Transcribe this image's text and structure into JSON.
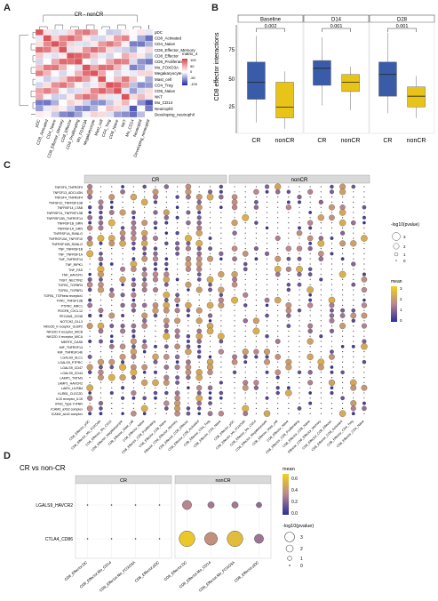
{
  "panels": {
    "a": {
      "letter": "A",
      "title": "CR - nonCR",
      "row_labels": [
        "pDC",
        "CD8_Activated",
        "CD4_Naive",
        "CD8_Effector_Memory",
        "CD8_Effector",
        "CD8_Proliferating",
        "Mo_FOXO3A",
        "Megakaryocyte",
        "Mast_cell",
        "CD4_Treg",
        "CD8_Naive",
        "NKT",
        "Mo_CD14",
        "Neutrophil",
        "Developing_neutrophil"
      ],
      "col_labels": [
        "pDC",
        "CD8_Activated",
        "CD4_Naive",
        "CD8_Effector_Memory",
        "CD8_Effector",
        "CD8_Proliferating",
        "Mo_FOXO3A",
        "Megakaryocyte",
        "Mast_cell",
        "CD4_Treg",
        "CD8_Naive",
        "NKT",
        "Mo_CD14",
        "Neutrophil",
        "Developing_neutrophil"
      ],
      "legend_title": "matrix_4",
      "legend_ticks": [
        "100",
        "50",
        "0",
        "-50",
        "-100"
      ]
    },
    "b": {
      "letter": "B",
      "ylabel": "CD8 effector interactions",
      "yticks": [
        "75",
        "50",
        "25"
      ],
      "facets": [
        {
          "name": "Baseline",
          "pvalue": "0.002",
          "groups": [
            "CR",
            "nonCR"
          ]
        },
        {
          "name": "D14",
          "pvalue": "0.001",
          "groups": [
            "CR",
            "nonCR"
          ]
        },
        {
          "name": "D28",
          "pvalue": "0.001",
          "groups": [
            "CR",
            "nonCR"
          ]
        }
      ]
    },
    "c": {
      "letter": "C",
      "facets": [
        "CR",
        "nonCR"
      ],
      "row_labels": [
        "TNFSF9_TNFRSF9",
        "TNFSF13_ADCLIGN",
        "TNFSF4_TNFRSF4",
        "TNFSF10_TNFRSF10B",
        "TNFRSF14_LTAB",
        "TNFRSF14_TNFRSF13B",
        "TNFRSF13B_TNFRSF14",
        "TNFRSF1B_GRN",
        "TNFRSF1A_GRN",
        "TNFRSF1A_RANLG",
        "TNFRSF10A_TNFSF10",
        "TNFRSF10B_RANLG",
        "TNF_TNFRSF1B",
        "TNF_TNFRSF1A",
        "TNF_TNFRSF14",
        "TNF_RIPK1",
        "TNF_FAS",
        "TNF_HAVCR1",
        "TIGIT_NECTIN2",
        "TGFB1_TGFBR3",
        "TGFB1_TGFBR1",
        "TGFB1_TGFbeta receptor1",
        "TFRC_TNFSF13B",
        "PTPRC_MRC1",
        "PDGFB_CXCL12",
        "PECAM1_CD38",
        "NOTCH2_DLL3",
        "NKG2D_II receptor_ULBP2",
        "NKG2D II receptor_MICB",
        "NKG2D II receptor_MICA",
        "MERTK_GAS6",
        "MIF_TNFRSF14",
        "MIF_TNFRSF14b",
        "LGALS9_SLC1",
        "LGALS9_PTPRC",
        "LGALS9_CD47",
        "LGALS9_CD44",
        "LAMP1_TNTM3",
        "LAMP1_HAVCR2",
        "LAIR1_LILRB4",
        "KLRB1_CLEC2D",
        "IL15 receptor_IL15",
        "IFNG_Type II IFNR",
        "ICAM3_aXb2 complex",
        "ICAM2_aLb2 complex"
      ],
      "col_labels": [
        "CD8_Effector_pDC",
        "CD8_Effector_Mo_FOXO3A",
        "CD8_Effector_Mo_CD14",
        "CD8_Effector_Megakaryocyte",
        "CD8_Effector_Mast_cell",
        "CD8_Effector_Naive",
        "CD8_Effector_CD8_Proliferating",
        "CD8_Effector_CD8_Naive",
        "CD8_Effector_CD8_Effector_Memory",
        "CD8_Effector_CD8_Effector",
        "CD8_Effector_CD8_Activated",
        "CD8_Effector_CD4_Treg",
        "CD8_Effector_CD4_Naive"
      ],
      "size_legend_title": "-log10(pvalue)",
      "size_legend_ticks": [
        "3",
        "2",
        "1",
        "0"
      ],
      "color_legend_title": "mean",
      "color_legend_ticks": [
        "3",
        "2",
        "1",
        "0"
      ]
    },
    "d": {
      "letter": "D",
      "title": "CR vs non-CR",
      "facets": [
        "CR",
        "nonCR"
      ],
      "rows": [
        "LGALS9_HAVCR2",
        "CTLA4_CD86"
      ],
      "cols": [
        "CD8_Effector.DC",
        "CD8_Effector.Mo_CD14",
        "CD8_Effector.Mo_FOXO3A",
        "CD8_Effector.pDC"
      ],
      "color_legend_title": "mean",
      "color_legend_ticks": [
        "0.6",
        "0.4",
        "0.2",
        "0.0"
      ],
      "size_legend_title": "-log10(pvalue)",
      "size_legend_ticks": [
        "3",
        "2",
        "1",
        "0"
      ],
      "nonCR_points": [
        {
          "row": 0,
          "col": 0,
          "size": 1.6,
          "mean": 0.35
        },
        {
          "row": 0,
          "col": 1,
          "size": 1.0,
          "mean": 0.3
        },
        {
          "row": 0,
          "col": 2,
          "size": 1.0,
          "mean": 0.3
        },
        {
          "row": 0,
          "col": 3,
          "size": 0.8,
          "mean": 0.25
        },
        {
          "row": 1,
          "col": 0,
          "size": 3.0,
          "mean": 0.65
        },
        {
          "row": 1,
          "col": 1,
          "size": 2.4,
          "mean": 0.4
        },
        {
          "row": 1,
          "col": 2,
          "size": 3.0,
          "mean": 0.6
        },
        {
          "row": 1,
          "col": 3,
          "size": 1.6,
          "mean": 0.28
        }
      ]
    }
  },
  "chart_data": [
    {
      "type": "heatmap",
      "title": "CR - nonCR",
      "legend_title": "matrix_4",
      "categories": [
        "pDC",
        "CD8_Activated",
        "CD4_Naive",
        "CD8_Effector_Memory",
        "CD8_Effector",
        "CD8_Proliferating",
        "Mo_FOXO3A",
        "Megakaryocyte",
        "Mast_cell",
        "CD4_Treg",
        "CD8_Naive",
        "NKT",
        "Mo_CD14",
        "Neutrophil",
        "Developing_neutrophil"
      ],
      "colorbar_range": [
        -100,
        100
      ]
    },
    {
      "type": "box",
      "ylabel": "CD8 effector interactions",
      "ylim": [
        15,
        85
      ],
      "facets": [
        {
          "name": "Baseline",
          "pvalue": "0.002",
          "boxes": [
            {
              "group": "CR",
              "min": 22,
              "q1": 37,
              "median": 48,
              "q3": 61,
              "max": 78,
              "color": "#3a5ba8"
            },
            {
              "group": "nonCR",
              "min": 18,
              "q1": 25,
              "median": 32,
              "q3": 48,
              "max": 55,
              "color": "#e8c318"
            }
          ]
        },
        {
          "name": "D14",
          "pvalue": "0.001",
          "boxes": [
            {
              "group": "CR",
              "min": 33,
              "q1": 46,
              "median": 57,
              "q3": 62,
              "max": 77,
              "color": "#3a5ba8"
            },
            {
              "group": "nonCR",
              "min": 30,
              "q1": 42,
              "median": 48,
              "q3": 53,
              "max": 58,
              "color": "#e8c318"
            }
          ]
        },
        {
          "name": "D28",
          "pvalue": "0.001",
          "boxes": [
            {
              "group": "CR",
              "min": 28,
              "q1": 39,
              "median": 53,
              "q3": 61,
              "max": 80,
              "color": "#3a5ba8"
            },
            {
              "group": "nonCR",
              "min": 25,
              "q1": 32,
              "median": 39,
              "q3": 45,
              "max": 52,
              "color": "#e8c318"
            }
          ]
        }
      ]
    },
    {
      "type": "scatter",
      "facets": [
        "CR",
        "nonCR"
      ],
      "size_legend": "-log10(pvalue)",
      "color_legend": "mean",
      "color_range": [
        0,
        3
      ]
    },
    {
      "type": "scatter",
      "title": "CR vs non-CR",
      "facets": [
        "CR",
        "nonCR"
      ],
      "rows": [
        "LGALS9_HAVCR2",
        "CTLA4_CD86"
      ],
      "cols": [
        "CD8_Effector.DC",
        "CD8_Effector.Mo_CD14",
        "CD8_Effector.Mo_FOXO3A",
        "CD8_Effector.pDC"
      ],
      "color_range": [
        0,
        0.7
      ]
    }
  ],
  "colors": {
    "heat_high": "#d6424a",
    "heat_mid": "#ffffff",
    "heat_low": "#1f2aa0",
    "box_cr": "#3a5ba8",
    "box_noncr": "#e8c318",
    "mean_low": "#2b2f9a",
    "mean_mid": "#b98690",
    "mean_high": "#f2d21a",
    "strip": "#d9d9d9"
  }
}
